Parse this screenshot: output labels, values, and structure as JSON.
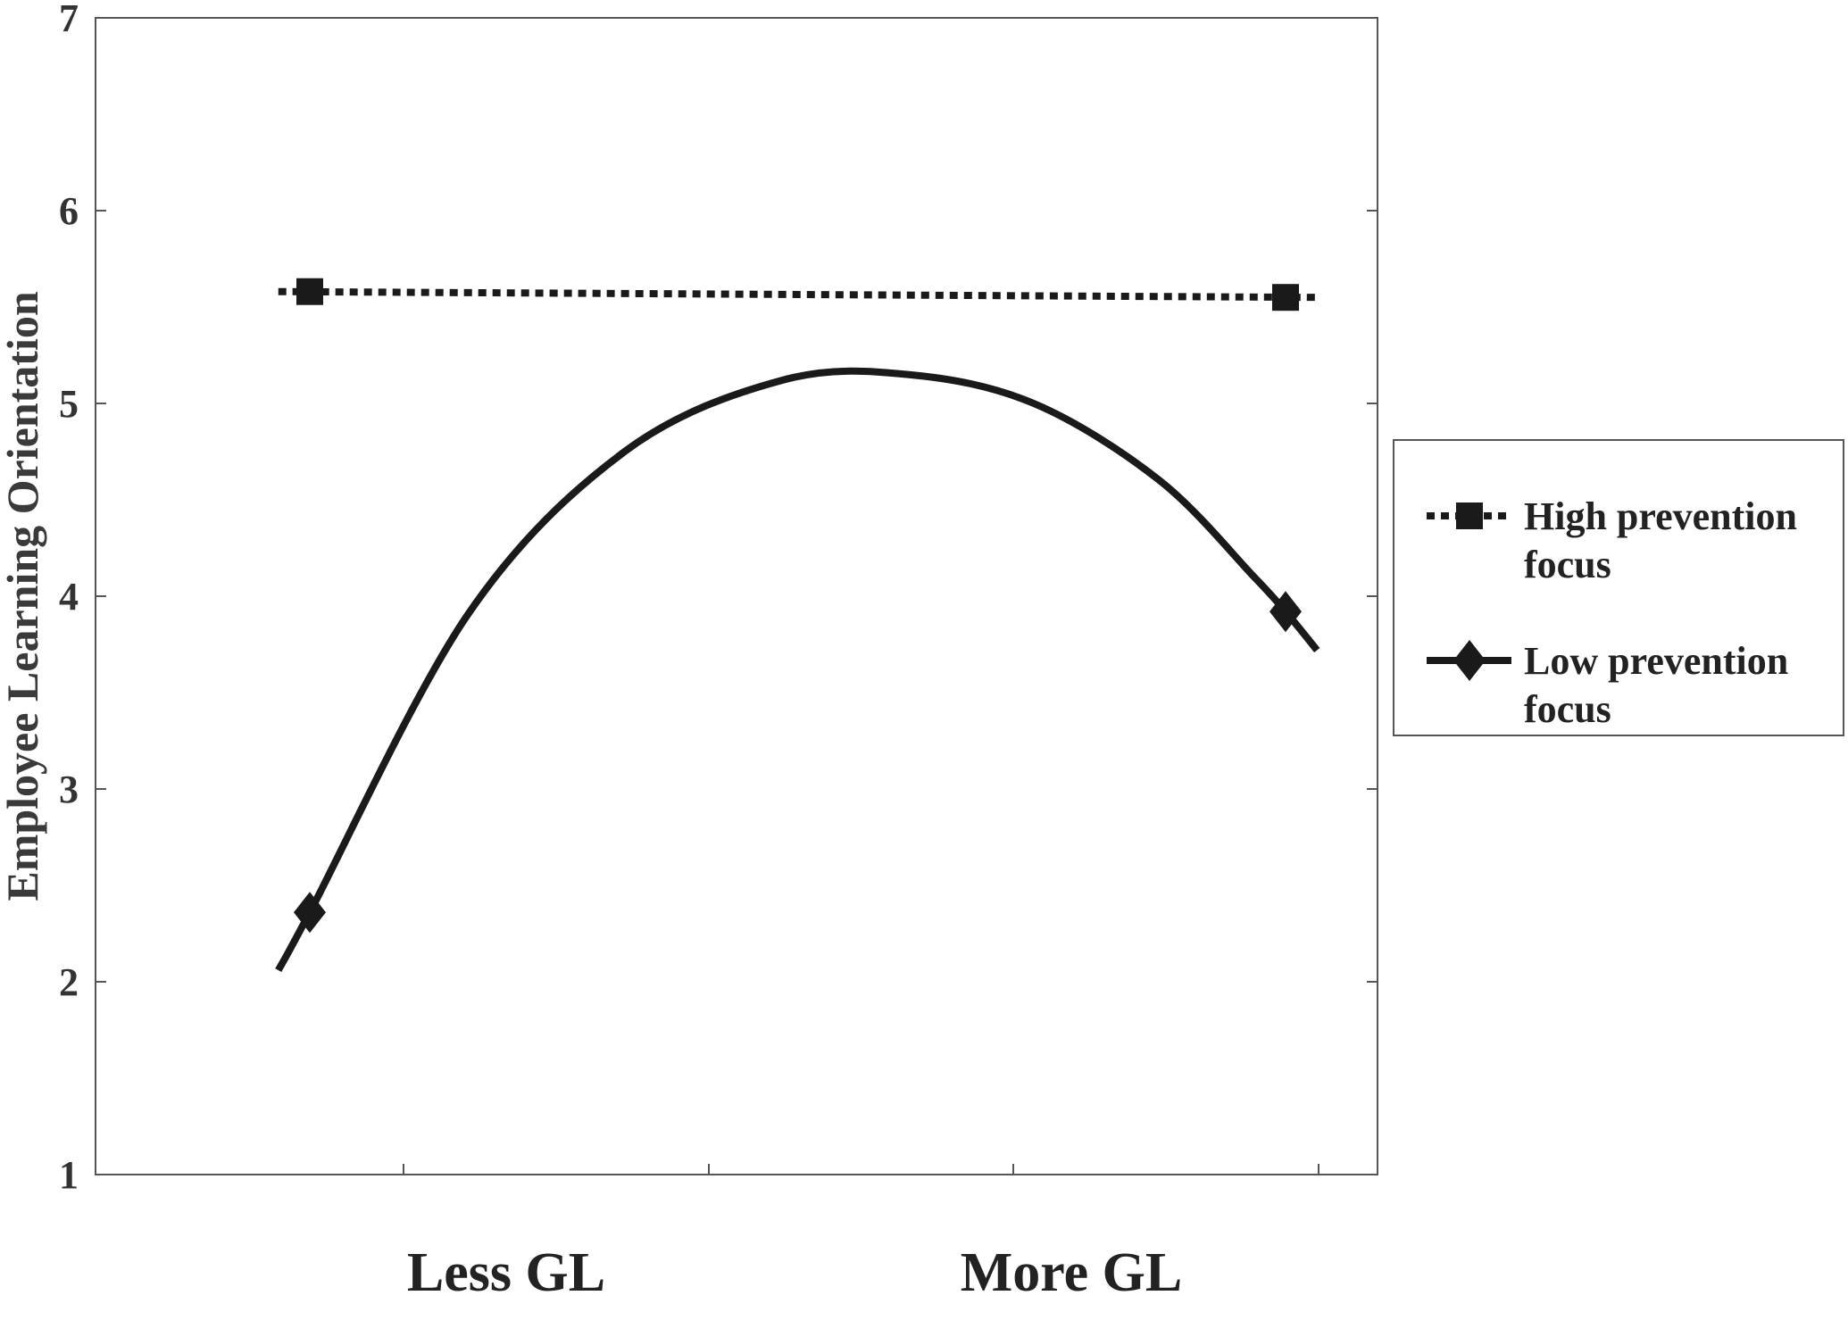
{
  "chart_data": {
    "type": "line",
    "title": "",
    "xlabel": "",
    "ylabel": "Employee Learning Orientation",
    "ylim": [
      1,
      7
    ],
    "yticks": [
      1,
      2,
      3,
      4,
      5,
      6,
      7
    ],
    "categories": [
      "Less GL",
      "More GL"
    ],
    "grid": false,
    "legend_position": "right",
    "series": [
      {
        "name": "High prevention focus",
        "style": "dotted",
        "marker": "square",
        "color": "#1a1a1a",
        "curve": [
          [
            -0.1,
            5.58
          ],
          [
            3.2,
            5.55
          ]
        ],
        "markers": [
          [
            0.0,
            5.58
          ],
          [
            3.1,
            5.55
          ]
        ]
      },
      {
        "name": "Low prevention focus",
        "style": "solid",
        "marker": "diamond",
        "color": "#1a1a1a",
        "curve": [
          [
            -0.1,
            2.06
          ],
          [
            0.0,
            2.36
          ],
          [
            0.5,
            3.9
          ],
          [
            1.0,
            4.75
          ],
          [
            1.5,
            5.12
          ],
          [
            1.9,
            5.15
          ],
          [
            2.3,
            5.0
          ],
          [
            2.7,
            4.6
          ],
          [
            3.0,
            4.1
          ],
          [
            3.1,
            3.92
          ],
          [
            3.2,
            3.72
          ]
        ],
        "markers": [
          [
            0.0,
            2.36
          ],
          [
            3.1,
            3.92
          ]
        ]
      }
    ]
  }
}
